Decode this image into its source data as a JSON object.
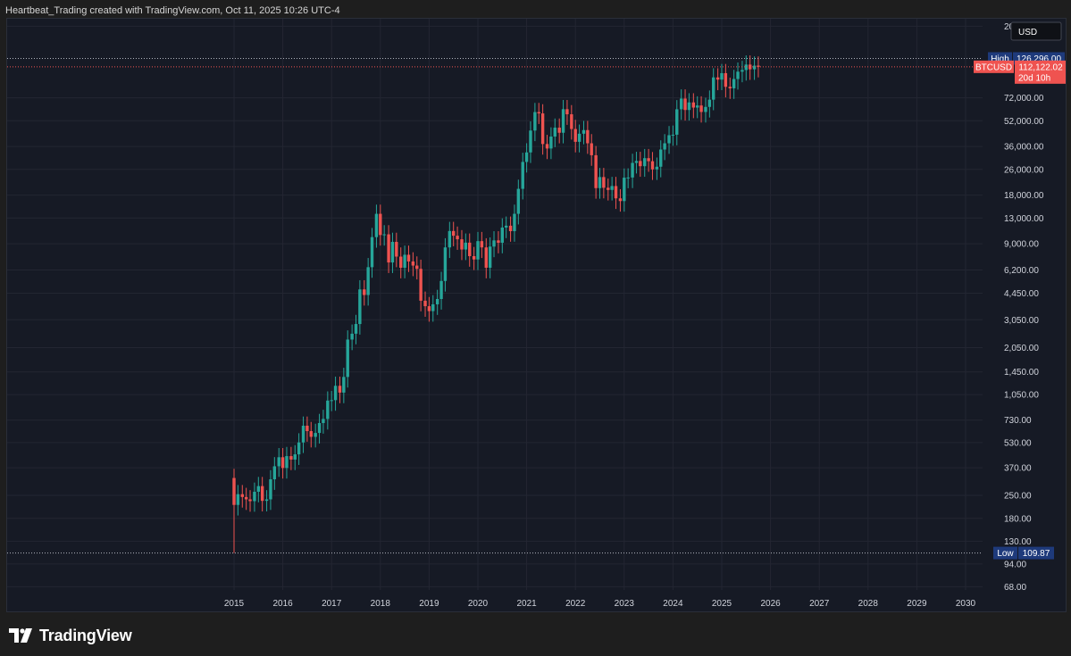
{
  "header": {
    "text": "Heartbeat_Trading created with TradingView.com, Oct 11, 2025 10:26 UTC-4"
  },
  "footer": {
    "brand": "TradingView",
    "logo_icon": "tradingview-logo-icon"
  },
  "chart_data": {
    "type": "candlestick",
    "symbol": "BTCUSD",
    "currency": "USD",
    "scale": "log",
    "y_ticks": [
      "200,000.00",
      "72,000.00",
      "52,000.00",
      "36,000.00",
      "26,000.00",
      "18,000.00",
      "13,000.00",
      "9,000.00",
      "6,200.00",
      "4,450.00",
      "3,050.00",
      "2,050.00",
      "1,450.00",
      "1,050.00",
      "730.00",
      "530.00",
      "370.00",
      "250.00",
      "180.00",
      "130.00",
      "94.00",
      "68.00"
    ],
    "y_tick_values": [
      200000,
      72000,
      52000,
      36000,
      26000,
      18000,
      13000,
      9000,
      6200,
      4450,
      3050,
      2050,
      1450,
      1050,
      730,
      530,
      370,
      250,
      180,
      130,
      94,
      68
    ],
    "x_ticks": [
      "2015",
      "2016",
      "2017",
      "2018",
      "2019",
      "2020",
      "2021",
      "2022",
      "2023",
      "2024",
      "2025",
      "2026",
      "2027",
      "2028",
      "2029",
      "2030"
    ],
    "x_range": [
      2015,
      2030
    ],
    "markers": {
      "high": {
        "label": "High",
        "value_text": "126,296.00",
        "value": 126296
      },
      "low": {
        "label": "Low",
        "value_text": "109.87",
        "value": 109.87
      },
      "last": {
        "label": "BTCUSD",
        "value_text": "112,122.02",
        "value": 112122.02,
        "countdown": "20d 10h"
      }
    },
    "colors": {
      "up": "#26a69a",
      "down": "#ef5350",
      "background": "#161a25",
      "grid": "#232632",
      "axis_text": "#d1d4dc",
      "high_low_tag": "#1e3a7b"
    },
    "candles_monthly_close": [
      {
        "t": 2015.0,
        "c": 218
      },
      {
        "t": 2015.08,
        "c": 254
      },
      {
        "t": 2015.17,
        "c": 244
      },
      {
        "t": 2015.25,
        "c": 236
      },
      {
        "t": 2015.33,
        "c": 230
      },
      {
        "t": 2015.42,
        "c": 263
      },
      {
        "t": 2015.5,
        "c": 285
      },
      {
        "t": 2015.58,
        "c": 231
      },
      {
        "t": 2015.67,
        "c": 236
      },
      {
        "t": 2015.75,
        "c": 314
      },
      {
        "t": 2015.83,
        "c": 378
      },
      {
        "t": 2015.92,
        "c": 430
      },
      {
        "t": 2016.0,
        "c": 369
      },
      {
        "t": 2016.08,
        "c": 437
      },
      {
        "t": 2016.17,
        "c": 416
      },
      {
        "t": 2016.25,
        "c": 448
      },
      {
        "t": 2016.33,
        "c": 531
      },
      {
        "t": 2016.42,
        "c": 674
      },
      {
        "t": 2016.5,
        "c": 624
      },
      {
        "t": 2016.58,
        "c": 575
      },
      {
        "t": 2016.67,
        "c": 608
      },
      {
        "t": 2016.75,
        "c": 700
      },
      {
        "t": 2016.83,
        "c": 742
      },
      {
        "t": 2016.92,
        "c": 964
      },
      {
        "t": 2017.0,
        "c": 970
      },
      {
        "t": 2017.08,
        "c": 1190
      },
      {
        "t": 2017.17,
        "c": 1080
      },
      {
        "t": 2017.25,
        "c": 1350
      },
      {
        "t": 2017.33,
        "c": 2300
      },
      {
        "t": 2017.42,
        "c": 2500
      },
      {
        "t": 2017.5,
        "c": 2870
      },
      {
        "t": 2017.58,
        "c": 4700
      },
      {
        "t": 2017.67,
        "c": 4340
      },
      {
        "t": 2017.75,
        "c": 6450
      },
      {
        "t": 2017.83,
        "c": 9900
      },
      {
        "t": 2017.92,
        "c": 13800
      },
      {
        "t": 2018.0,
        "c": 10200
      },
      {
        "t": 2018.08,
        "c": 10300
      },
      {
        "t": 2018.17,
        "c": 6900
      },
      {
        "t": 2018.25,
        "c": 9250
      },
      {
        "t": 2018.33,
        "c": 7500
      },
      {
        "t": 2018.42,
        "c": 6400
      },
      {
        "t": 2018.5,
        "c": 7700
      },
      {
        "t": 2018.58,
        "c": 7000
      },
      {
        "t": 2018.67,
        "c": 6600
      },
      {
        "t": 2018.75,
        "c": 6300
      },
      {
        "t": 2018.83,
        "c": 4000
      },
      {
        "t": 2018.92,
        "c": 3700
      },
      {
        "t": 2019.0,
        "c": 3450
      },
      {
        "t": 2019.08,
        "c": 3800
      },
      {
        "t": 2019.17,
        "c": 4100
      },
      {
        "t": 2019.25,
        "c": 5300
      },
      {
        "t": 2019.33,
        "c": 8550
      },
      {
        "t": 2019.42,
        "c": 10800
      },
      {
        "t": 2019.5,
        "c": 10100
      },
      {
        "t": 2019.58,
        "c": 9600
      },
      {
        "t": 2019.67,
        "c": 8300
      },
      {
        "t": 2019.75,
        "c": 9150
      },
      {
        "t": 2019.83,
        "c": 7550
      },
      {
        "t": 2019.92,
        "c": 7200
      },
      {
        "t": 2020.0,
        "c": 9350
      },
      {
        "t": 2020.08,
        "c": 8550
      },
      {
        "t": 2020.17,
        "c": 6400
      },
      {
        "t": 2020.25,
        "c": 8650
      },
      {
        "t": 2020.33,
        "c": 9450
      },
      {
        "t": 2020.42,
        "c": 9140
      },
      {
        "t": 2020.5,
        "c": 11350
      },
      {
        "t": 2020.58,
        "c": 11650
      },
      {
        "t": 2020.67,
        "c": 10780
      },
      {
        "t": 2020.75,
        "c": 13800
      },
      {
        "t": 2020.83,
        "c": 19700
      },
      {
        "t": 2020.92,
        "c": 28900
      },
      {
        "t": 2021.0,
        "c": 33100
      },
      {
        "t": 2021.08,
        "c": 45200
      },
      {
        "t": 2021.17,
        "c": 58800
      },
      {
        "t": 2021.25,
        "c": 57700
      },
      {
        "t": 2021.33,
        "c": 37300
      },
      {
        "t": 2021.42,
        "c": 35000
      },
      {
        "t": 2021.5,
        "c": 41500
      },
      {
        "t": 2021.58,
        "c": 47100
      },
      {
        "t": 2021.67,
        "c": 43800
      },
      {
        "t": 2021.75,
        "c": 61300
      },
      {
        "t": 2021.83,
        "c": 57000
      },
      {
        "t": 2021.92,
        "c": 46200
      },
      {
        "t": 2022.0,
        "c": 38500
      },
      {
        "t": 2022.08,
        "c": 43200
      },
      {
        "t": 2022.17,
        "c": 45500
      },
      {
        "t": 2022.25,
        "c": 37700
      },
      {
        "t": 2022.33,
        "c": 31800
      },
      {
        "t": 2022.42,
        "c": 19900
      },
      {
        "t": 2022.5,
        "c": 23300
      },
      {
        "t": 2022.58,
        "c": 20000
      },
      {
        "t": 2022.67,
        "c": 19400
      },
      {
        "t": 2022.75,
        "c": 20500
      },
      {
        "t": 2022.83,
        "c": 17200
      },
      {
        "t": 2022.92,
        "c": 16550
      },
      {
        "t": 2023.0,
        "c": 23100
      },
      {
        "t": 2023.08,
        "c": 23150
      },
      {
        "t": 2023.17,
        "c": 28500
      },
      {
        "t": 2023.25,
        "c": 29300
      },
      {
        "t": 2023.33,
        "c": 27200
      },
      {
        "t": 2023.42,
        "c": 30500
      },
      {
        "t": 2023.5,
        "c": 29200
      },
      {
        "t": 2023.58,
        "c": 26000
      },
      {
        "t": 2023.67,
        "c": 27000
      },
      {
        "t": 2023.75,
        "c": 34500
      },
      {
        "t": 2023.83,
        "c": 37700
      },
      {
        "t": 2023.92,
        "c": 42300
      },
      {
        "t": 2024.0,
        "c": 42600
      },
      {
        "t": 2024.08,
        "c": 61200
      },
      {
        "t": 2024.17,
        "c": 71300
      },
      {
        "t": 2024.25,
        "c": 60600
      },
      {
        "t": 2024.33,
        "c": 67500
      },
      {
        "t": 2024.42,
        "c": 62700
      },
      {
        "t": 2024.5,
        "c": 64600
      },
      {
        "t": 2024.58,
        "c": 58900
      },
      {
        "t": 2024.67,
        "c": 63300
      },
      {
        "t": 2024.75,
        "c": 70200
      },
      {
        "t": 2024.83,
        "c": 96400
      },
      {
        "t": 2024.92,
        "c": 93400
      },
      {
        "t": 2025.0,
        "c": 102400
      },
      {
        "t": 2025.08,
        "c": 84300
      },
      {
        "t": 2025.17,
        "c": 82500
      },
      {
        "t": 2025.25,
        "c": 94200
      },
      {
        "t": 2025.33,
        "c": 104600
      },
      {
        "t": 2025.42,
        "c": 107100
      },
      {
        "t": 2025.5,
        "c": 115700
      },
      {
        "t": 2025.58,
        "c": 108200
      },
      {
        "t": 2025.67,
        "c": 114000
      },
      {
        "t": 2025.75,
        "c": 112122
      }
    ]
  }
}
